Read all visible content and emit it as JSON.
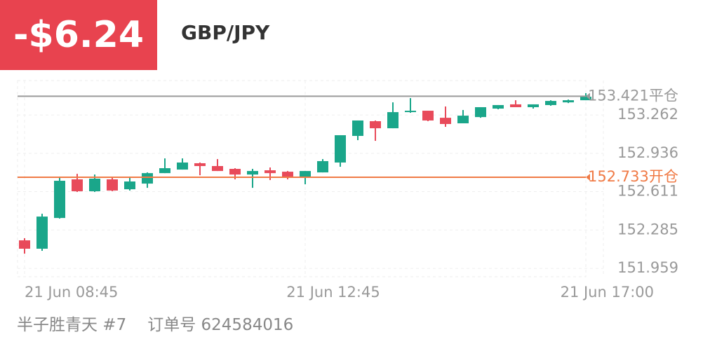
{
  "header": {
    "pnl": "-$6.24",
    "symbol": "GBP/JPY"
  },
  "footer": {
    "user": "半子胜青天 #7",
    "order": "订单号 624584016"
  },
  "chart_data": {
    "type": "candlestick",
    "up_color": "#1aa68a",
    "down_color": "#e84a5a",
    "open": [
      152.197,
      152.126,
      152.387,
      152.715,
      152.614,
      152.715,
      152.631,
      152.679,
      152.768,
      152.798,
      152.852,
      152.828,
      152.804,
      152.756,
      152.792,
      152.78,
      152.733,
      152.774,
      152.858,
      153.084,
      153.209,
      153.149,
      153.286,
      153.298,
      153.238,
      153.191,
      153.244,
      153.316,
      153.352,
      153.328,
      153.346,
      153.369,
      153.387
    ],
    "high": [
      152.215,
      152.423,
      152.739,
      152.762,
      152.756,
      152.733,
      152.739,
      152.774,
      152.893,
      152.893,
      152.858,
      152.887,
      152.81,
      152.804,
      152.816,
      152.786,
      152.786,
      152.887,
      153.09,
      153.215,
      153.215,
      153.369,
      153.405,
      153.298,
      153.334,
      153.304,
      153.328,
      153.346,
      153.387,
      153.352,
      153.387,
      153.393,
      153.447
    ],
    "low": [
      152.084,
      152.108,
      152.382,
      152.608,
      152.608,
      152.614,
      152.62,
      152.643,
      152.768,
      152.798,
      152.75,
      152.786,
      152.715,
      152.643,
      152.709,
      152.715,
      152.673,
      152.774,
      152.822,
      153.048,
      153.042,
      153.149,
      153.28,
      153.209,
      153.161,
      153.191,
      153.238,
      153.31,
      153.334,
      153.316,
      153.34,
      153.363,
      153.387
    ],
    "close": [
      152.126,
      152.399,
      152.703,
      152.614,
      152.721,
      152.62,
      152.697,
      152.768,
      152.81,
      152.858,
      152.828,
      152.786,
      152.756,
      152.786,
      152.768,
      152.733,
      152.786,
      152.87,
      153.09,
      153.215,
      153.149,
      153.286,
      153.298,
      153.215,
      153.185,
      153.256,
      153.328,
      153.346,
      153.328,
      153.352,
      153.381,
      153.387,
      153.417
    ],
    "xlim": [
      -0.4,
      32.0
    ],
    "xticks": [
      {
        "value": 0,
        "label": "21 Jun  08:45"
      },
      {
        "value": 16,
        "label": "21 Jun  12:45"
      },
      {
        "value": 33,
        "label": "21 Jun  17:00"
      }
    ],
    "ylim": [
      151.888,
      153.554
    ],
    "yticks": [
      151.959,
      152.285,
      152.611,
      152.936,
      153.262
    ],
    "grid": true,
    "reference_lines": [
      {
        "value": 153.421,
        "label": "153.421平仓",
        "color": "#9a9a9a"
      },
      {
        "value": 152.733,
        "label": "152.733开仓",
        "color": "#f07a45"
      }
    ]
  }
}
